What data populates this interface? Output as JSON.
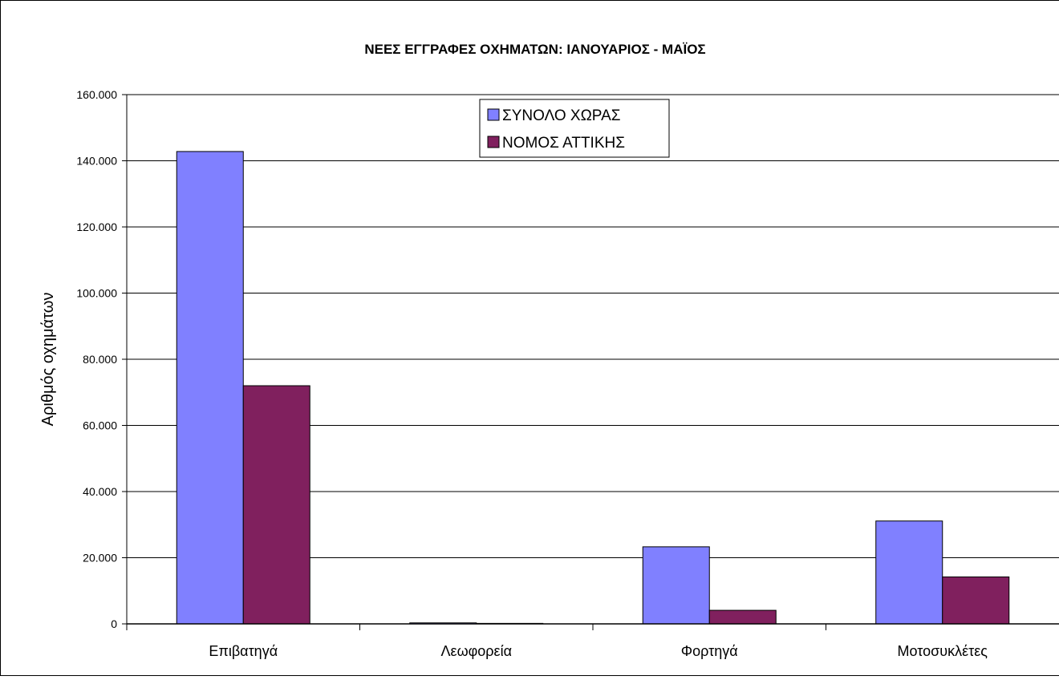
{
  "chart_data": {
    "type": "bar",
    "title": "ΝΕΕΣ ΕΓΓΡΑΦΕΣ ΟΧΗΜΑΤΩΝ:  ΙΑΝΟΥΑΡΙΟΣ - ΜΑΪΟΣ",
    "xlabel": "",
    "ylabel": "Αριθμός οχημάτων",
    "categories": [
      "Επιβατηγά",
      "Λεωφορεία",
      "Φορτηγά",
      "Μοτοσυκλέτες"
    ],
    "series": [
      {
        "name": "ΣΥΝΟΛΟ ΧΩΡΑΣ",
        "color": "#8080ff",
        "values": [
          142800,
          300,
          23300,
          31100
        ]
      },
      {
        "name": "ΝΟΜΟΣ ΑΤΤΙΚΗΣ",
        "color": "#80205e",
        "values": [
          72000,
          150,
          4100,
          14200
        ]
      }
    ],
    "ylim": [
      0,
      160000
    ],
    "yticks": [
      0,
      20000,
      40000,
      60000,
      80000,
      100000,
      120000,
      140000,
      160000
    ],
    "ytick_labels": [
      "0",
      "20.000",
      "40.000",
      "60.000",
      "80.000",
      "100.000",
      "120.000",
      "140.000",
      "160.000"
    ],
    "grid": true,
    "legend_position": "top-center"
  }
}
